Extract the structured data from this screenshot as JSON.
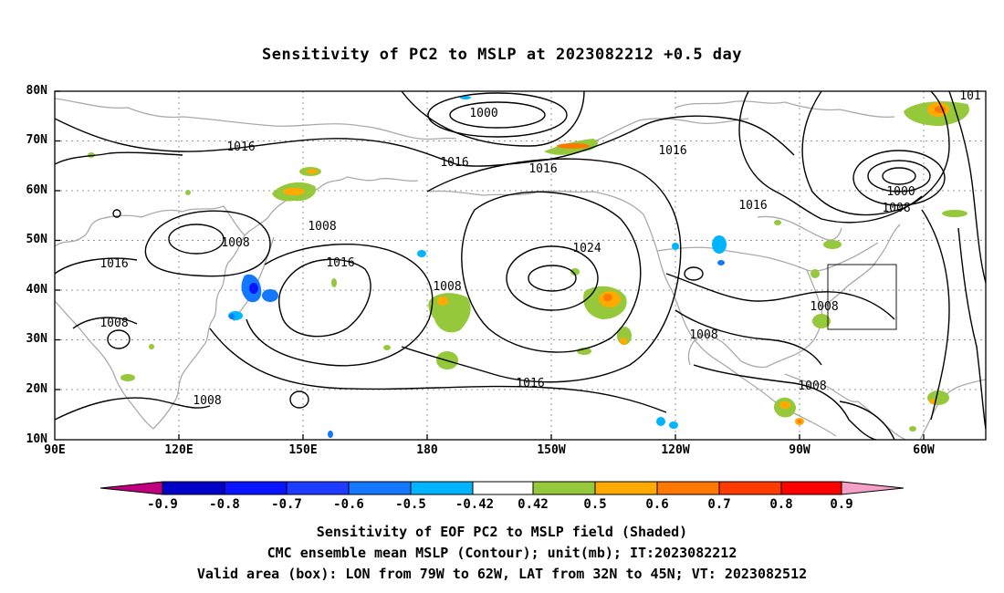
{
  "title": "Sensitivity of PC2 to MSLP at 2023082212 +0.5 day",
  "lat_labels": [
    "80N",
    "70N",
    "60N",
    "50N",
    "40N",
    "30N",
    "20N",
    "10N"
  ],
  "lon_labels": [
    "90E",
    "120E",
    "150E",
    "180",
    "150W",
    "120W",
    "90W",
    "60W"
  ],
  "contour_labels": [
    "1000",
    "1016",
    "1016",
    "1016",
    "1016",
    "1016",
    "1016",
    "1008",
    "1008",
    "1008",
    "1008",
    "1024",
    "1016",
    "1008",
    "1008",
    "1000",
    "1008",
    "1016",
    "1008",
    "101"
  ],
  "colorbar": {
    "labels": [
      "-0.9",
      "-0.8",
      "-0.7",
      "-0.6",
      "-0.5",
      "-0.42",
      "0.42",
      "0.5",
      "0.6",
      "0.7",
      "0.8",
      "0.9"
    ],
    "colors": [
      "#c0007f",
      "#0000c8",
      "#0a14ff",
      "#1e3cff",
      "#1478ff",
      "#00b4ff",
      "#ffffff",
      "#96c83c",
      "#ffaa00",
      "#ff7800",
      "#ff3c00",
      "#ff0000",
      "#f5a0c8"
    ]
  },
  "captions": [
    "Sensitivity of EOF PC2 to MSLP field (Shaded)",
    "CMC ensemble mean MSLP (Contour); unit(mb); IT:2023082212",
    "Valid area (box): LON from 79W to 62W, LAT from 32N to 45N; VT: 2023082512"
  ]
}
